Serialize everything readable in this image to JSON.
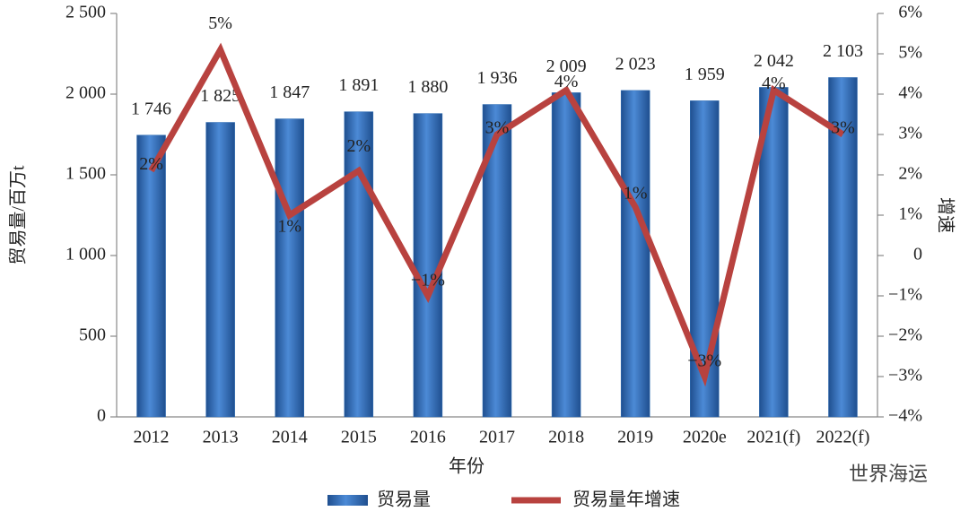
{
  "chart_data": {
    "type": "bar-line",
    "categories": [
      "2012",
      "2013",
      "2014",
      "2015",
      "2016",
      "2017",
      "2018",
      "2019",
      "2020e",
      "2021(f)",
      "2022(f)"
    ],
    "series": [
      {
        "name": "贸易量",
        "type": "bar",
        "color": "#2e6db4",
        "values": [
          1746,
          1825,
          1847,
          1891,
          1880,
          1936,
          2009,
          2023,
          1959,
          2042,
          2103
        ],
        "value_labels": [
          "1 746",
          "1 825",
          "1 847",
          "1 891",
          "1 880",
          "1 936",
          "2 009",
          "2 023",
          "1 959",
          "2 042",
          "2 103"
        ]
      },
      {
        "name": "贸易量年增速",
        "type": "line",
        "axis": "y2",
        "color": "#b8423f",
        "values": [
          2.1,
          5.1,
          1.0,
          2.1,
          -1.0,
          3.0,
          4.1,
          1.2,
          -3.0,
          4.1,
          3.0
        ],
        "value_labels": [
          "2%",
          "5%",
          "1%",
          "2%",
          "−1%",
          "3%",
          "4%",
          "1%",
          "−3%",
          "4%",
          "3%"
        ]
      }
    ],
    "x_label": "年份",
    "y_label": "贸易量/百万t",
    "y2_label": "增速",
    "ylim": [
      0,
      2500
    ],
    "yticks": [
      0,
      500,
      {
        "value": 1000,
        "label": "1 000"
      },
      {
        "value": 1500,
        "label": "1 500"
      },
      {
        "value": 2000,
        "label": "2 000"
      },
      {
        "value": 2500,
        "label": "2 500"
      }
    ],
    "y2lim": [
      -4,
      6
    ],
    "y2ticks": [
      {
        "value": -4,
        "label": "−4%"
      },
      {
        "value": -3,
        "label": "−3%"
      },
      {
        "value": -2,
        "label": "−2%"
      },
      {
        "value": -1,
        "label": "−1%"
      },
      0,
      {
        "value": 1,
        "label": "1%"
      },
      {
        "value": 2,
        "label": "2%"
      },
      {
        "value": 3,
        "label": "3%"
      },
      {
        "value": 4,
        "label": "4%"
      },
      {
        "value": 5,
        "label": "5%"
      },
      {
        "value": 6,
        "label": "6%"
      }
    ],
    "legend": "bottom",
    "watermark": "世界海运"
  }
}
